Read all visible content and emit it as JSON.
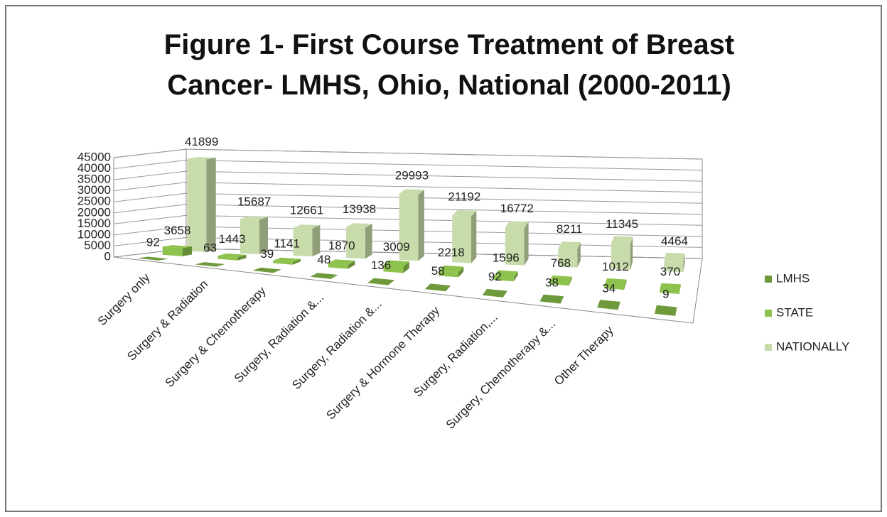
{
  "chart_data": {
    "type": "bar3d",
    "title": "Figure 1- First Course Treatment of Breast Cancer- LMHS, Ohio, National (2000-2011)",
    "categories": [
      "Surgery only",
      "Surgery & Radiation",
      "Surgery & Chemotherapy",
      "Surgery, Radiation &...",
      "Surgery, Radiation &...",
      "Surgery & Hormone Therapy",
      "Surgery, Radiation,...",
      "Surgery, Chemotherapy &...",
      "Other Therapy",
      null
    ],
    "series": [
      {
        "name": "LMHS",
        "color": "#6f9a3c",
        "values": [
          92,
          63,
          39,
          48,
          136,
          58,
          92,
          38,
          34,
          9
        ]
      },
      {
        "name": "STATE",
        "color": "#8dc24c",
        "values": [
          3658,
          1443,
          1141,
          1870,
          3009,
          2218,
          1596,
          768,
          1012,
          370
        ]
      },
      {
        "name": "NATIONALLY",
        "color": "#c8dbaa",
        "values": [
          41899,
          15687,
          12661,
          13938,
          29993,
          21192,
          16772,
          8211,
          11345,
          4464
        ]
      }
    ],
    "ylim": [
      0,
      45000
    ],
    "yticks": [
      0,
      5000,
      10000,
      15000,
      20000,
      25000,
      30000,
      35000,
      40000,
      45000
    ],
    "grid": true,
    "legend": "right"
  }
}
